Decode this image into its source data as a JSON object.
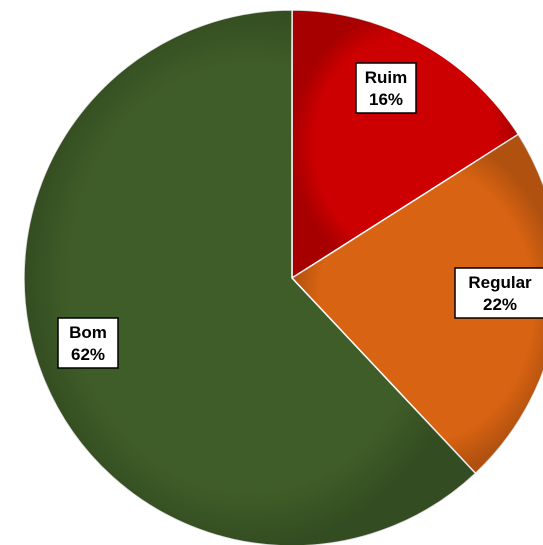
{
  "chart_data": {
    "type": "pie",
    "title": "",
    "slices": [
      {
        "label": "Ruim",
        "value": 16,
        "value_label": "16%",
        "color": "#CC0000"
      },
      {
        "label": "Regular",
        "value": 22,
        "value_label": "22%",
        "color": "#D86312"
      },
      {
        "label": "Bom",
        "value": 62,
        "value_label": "62%",
        "color": "#3F5D28"
      }
    ],
    "start": "12 o'clock",
    "direction": "clockwise",
    "legend": "none",
    "data_labels": "category and percentage in boxed callouts"
  }
}
